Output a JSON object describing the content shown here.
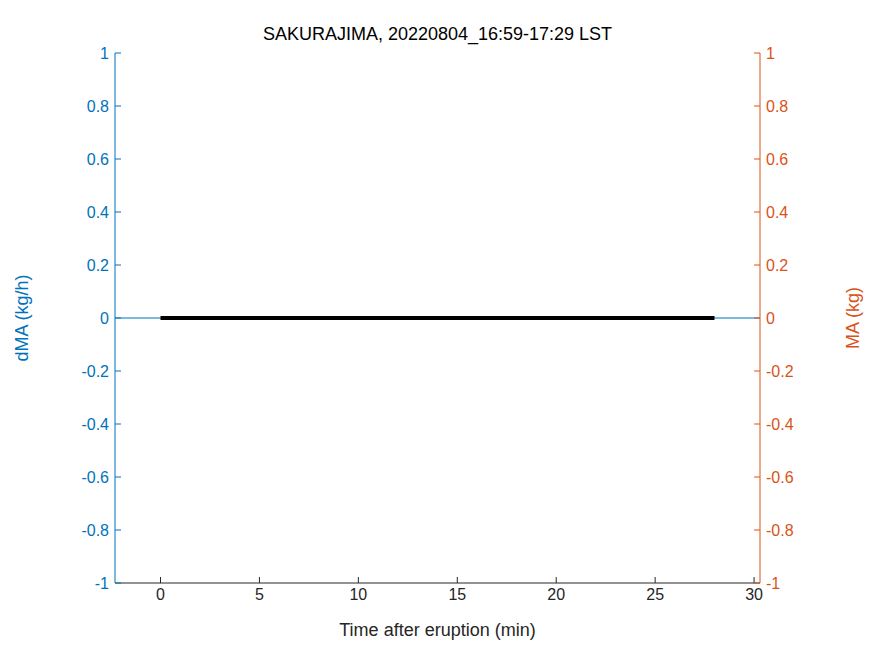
{
  "chart_data": {
    "type": "line",
    "title": "SAKURAJIMA, 20220804_16:59-17:29 LST",
    "x_label": "Time after eruption (min)",
    "y_label": "dMA (kg/h)",
    "y2_label": "MA (kg)",
    "xlim": [
      -2.3,
      30.3
    ],
    "xticks": [
      0,
      5,
      10,
      15,
      20,
      25,
      30
    ],
    "ylim": [
      -1,
      1
    ],
    "yticks": [
      -1,
      -0.8,
      -0.6,
      -0.4,
      -0.2,
      0,
      0.2,
      0.4,
      0.6,
      0.8,
      1
    ],
    "y2lim": [
      -1,
      1
    ],
    "y2ticks": [
      -1,
      -0.8,
      -0.6,
      -0.4,
      -0.2,
      0,
      0.2,
      0.4,
      0.6,
      0.8,
      1
    ],
    "y_color": "#0072bd",
    "y2_color": "#d95319",
    "grid": false,
    "series": [
      {
        "name": "dMA",
        "color": "#0072bd",
        "x": [
          -2.3,
          30.3
        ],
        "values": [
          0,
          0
        ]
      },
      {
        "name": "MA",
        "color": "#000000",
        "axis": "y2",
        "x": [
          0,
          28
        ],
        "values": [
          0,
          0
        ]
      }
    ]
  }
}
